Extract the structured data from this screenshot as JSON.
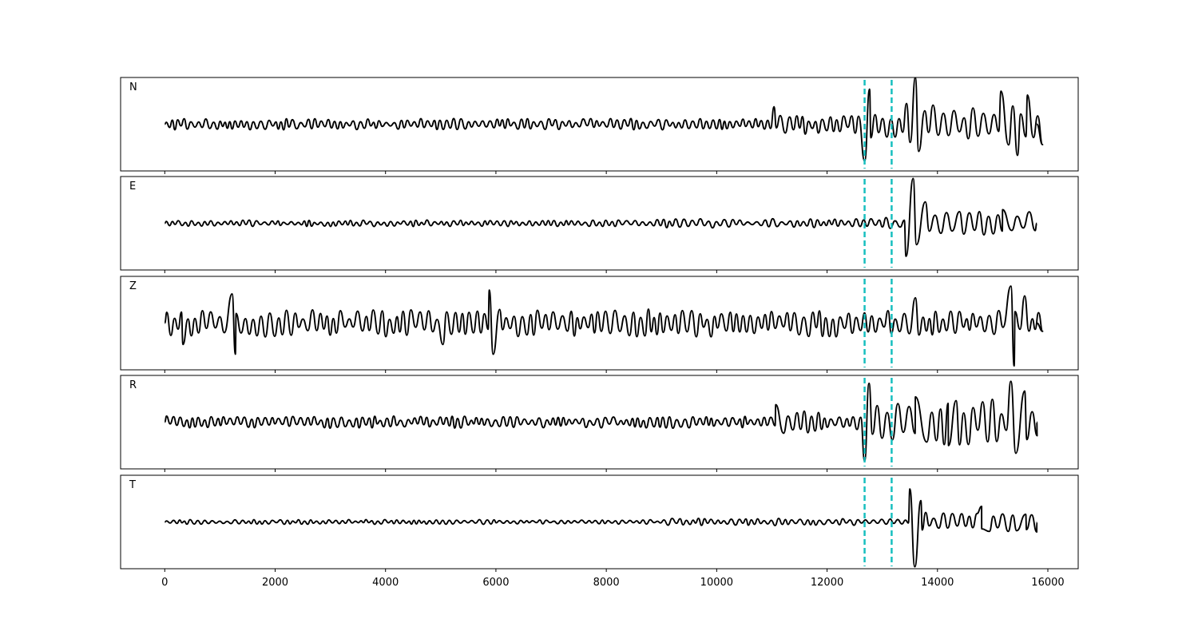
{
  "chart_data": {
    "type": "line",
    "title": "",
    "xlabel": "",
    "ylabel": "",
    "xlim": [
      -800,
      16550
    ],
    "xticks": [
      0,
      2000,
      4000,
      6000,
      8000,
      10000,
      12000,
      14000,
      16000
    ],
    "xtick_labels": [
      "0",
      "2000",
      "4000",
      "6000",
      "8000",
      "10000",
      "12000",
      "14000",
      "16000"
    ],
    "shared_x": true,
    "grid": false,
    "marker_lines": {
      "x": [
        12680,
        13170
      ],
      "color": "#17bfbf",
      "style": "dashed"
    },
    "trace_color": "#000000",
    "panels": [
      {
        "name": "N",
        "ylim": [
          -1.2,
          1.2
        ],
        "segments": [
          {
            "x0": 0,
            "x1": 11000,
            "amp": 0.12,
            "period": 120
          },
          {
            "x0": 11000,
            "x1": 12650,
            "amp": 0.22,
            "period": 140
          },
          {
            "x0": 12650,
            "x1": 13150,
            "amp": 0.35,
            "period": 160
          },
          {
            "x0": 13150,
            "x1": 15800,
            "amp": 0.45,
            "period": 170
          }
        ],
        "spikes": [
          {
            "x": 11040,
            "y": 0.45
          },
          {
            "x": 12680,
            "y": -0.95
          },
          {
            "x": 12770,
            "y": 0.9
          },
          {
            "x": 13600,
            "y": 1.2
          },
          {
            "x": 13660,
            "y": -0.7
          },
          {
            "x": 15150,
            "y": 0.85
          },
          {
            "x": 15450,
            "y": -0.8
          },
          {
            "x": 15630,
            "y": 0.75
          }
        ]
      },
      {
        "name": "E",
        "ylim": [
          -1.2,
          1.2
        ],
        "segments": [
          {
            "x0": 0,
            "x1": 8000,
            "amp": 0.07,
            "period": 115
          },
          {
            "x0": 8000,
            "x1": 12650,
            "amp": 0.1,
            "period": 130
          },
          {
            "x0": 12650,
            "x1": 13400,
            "amp": 0.12,
            "period": 150
          },
          {
            "x0": 13400,
            "x1": 15800,
            "amp": 0.25,
            "period": 170
          }
        ],
        "spikes": [
          {
            "x": 13430,
            "y": -0.85
          },
          {
            "x": 13560,
            "y": 1.15
          },
          {
            "x": 13620,
            "y": -0.55
          },
          {
            "x": 13780,
            "y": 0.55
          },
          {
            "x": 14400,
            "y": 0.3
          },
          {
            "x": 15180,
            "y": 0.35
          }
        ]
      },
      {
        "name": "Z",
        "ylim": [
          -1.2,
          1.2
        ],
        "segments": [
          {
            "x0": 0,
            "x1": 15800,
            "amp": 0.3,
            "period": 140
          }
        ],
        "spikes": [
          {
            "x": 330,
            "y": -0.55
          },
          {
            "x": 1220,
            "y": 0.75
          },
          {
            "x": 1280,
            "y": -0.8
          },
          {
            "x": 5040,
            "y": -0.55
          },
          {
            "x": 5880,
            "y": 0.85
          },
          {
            "x": 5950,
            "y": -0.8
          },
          {
            "x": 13600,
            "y": 0.65
          },
          {
            "x": 15330,
            "y": 0.95
          },
          {
            "x": 15390,
            "y": -1.1
          },
          {
            "x": 15580,
            "y": 0.7
          }
        ]
      },
      {
        "name": "R",
        "ylim": [
          -1.2,
          1.2
        ],
        "segments": [
          {
            "x0": 0,
            "x1": 11000,
            "amp": 0.13,
            "period": 120
          },
          {
            "x0": 11000,
            "x1": 12650,
            "amp": 0.24,
            "period": 140
          },
          {
            "x0": 12650,
            "x1": 13150,
            "amp": 0.4,
            "period": 160
          },
          {
            "x0": 13150,
            "x1": 15800,
            "amp": 0.5,
            "period": 170
          }
        ],
        "spikes": [
          {
            "x": 11070,
            "y": 0.45
          },
          {
            "x": 12680,
            "y": -1.0
          },
          {
            "x": 12760,
            "y": 1.0
          },
          {
            "x": 13600,
            "y": 0.65
          },
          {
            "x": 14200,
            "y": -0.6
          },
          {
            "x": 15330,
            "y": 1.05
          },
          {
            "x": 15420,
            "y": -0.8
          },
          {
            "x": 15580,
            "y": 0.8
          }
        ]
      },
      {
        "name": "T",
        "ylim": [
          -1.2,
          1.2
        ],
        "segments": [
          {
            "x0": 0,
            "x1": 9000,
            "amp": 0.05,
            "period": 115
          },
          {
            "x0": 9000,
            "x1": 13400,
            "amp": 0.08,
            "period": 130
          },
          {
            "x0": 13400,
            "x1": 15800,
            "amp": 0.22,
            "period": 160
          }
        ],
        "spikes": [
          {
            "x": 13500,
            "y": 0.85
          },
          {
            "x": 13590,
            "y": -1.15
          },
          {
            "x": 13700,
            "y": 0.55
          },
          {
            "x": 14800,
            "y": 0.4
          },
          {
            "x": 15600,
            "y": 0.2
          }
        ]
      }
    ]
  }
}
